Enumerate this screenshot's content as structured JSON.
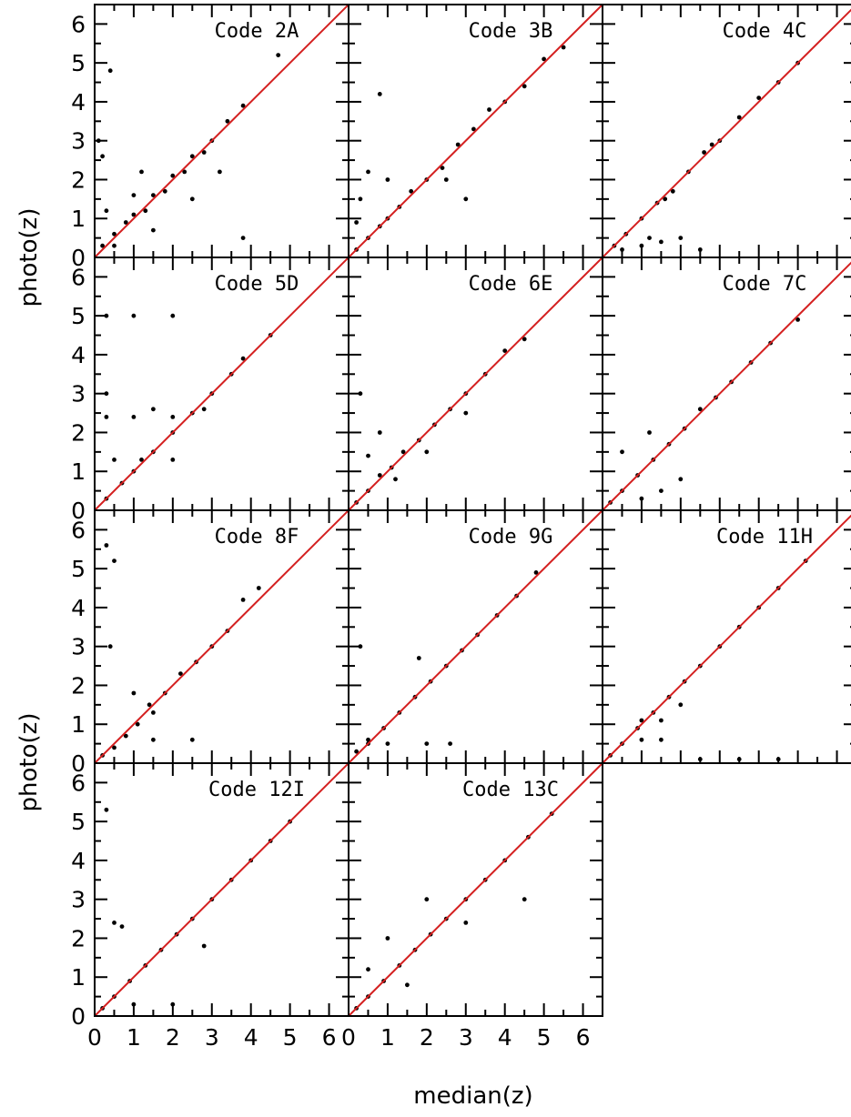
{
  "figure": {
    "xlabel": "median(z)",
    "ylabel": "photo(z)"
  },
  "chart_data": [
    {
      "type": "scatter",
      "title": "Code 2A",
      "xlim": [
        0,
        6.5
      ],
      "ylim": [
        0,
        6.5
      ],
      "xticks": [
        0,
        1,
        2,
        3,
        4,
        5,
        6
      ],
      "yticks": [
        0,
        1,
        2,
        3,
        4,
        5,
        6
      ],
      "reference_line": "y = x",
      "series": [
        {
          "points": [
            [
              0.2,
              0.3
            ],
            [
              0.5,
              0.6
            ],
            [
              0.8,
              0.9
            ],
            [
              1.0,
              1.1
            ],
            [
              1.3,
              1.2
            ],
            [
              1.5,
              1.6
            ],
            [
              1.8,
              1.7
            ],
            [
              2.0,
              2.1
            ],
            [
              2.3,
              2.2
            ],
            [
              2.5,
              2.6
            ],
            [
              2.8,
              2.7
            ],
            [
              3.0,
              3.0
            ],
            [
              3.4,
              3.5
            ],
            [
              3.8,
              3.9
            ],
            [
              0.1,
              3.0
            ],
            [
              0.2,
              2.6
            ],
            [
              0.3,
              1.2
            ],
            [
              0.5,
              0.3
            ],
            [
              1.0,
              1.6
            ],
            [
              1.5,
              0.7
            ],
            [
              2.5,
              1.5
            ],
            [
              3.2,
              2.2
            ],
            [
              3.8,
              0.5
            ],
            [
              4.7,
              5.2
            ],
            [
              0.4,
              4.8
            ],
            [
              1.2,
              2.2
            ]
          ]
        }
      ]
    },
    {
      "type": "scatter",
      "title": "Code 3B",
      "xlim": [
        0,
        6.5
      ],
      "ylim": [
        0,
        6.5
      ],
      "xticks": [
        0,
        1,
        2,
        3,
        4,
        5,
        6
      ],
      "yticks": [
        0,
        1,
        2,
        3,
        4,
        5,
        6
      ],
      "reference_line": "y = x",
      "series": [
        {
          "points": [
            [
              0.2,
              0.2
            ],
            [
              0.5,
              0.5
            ],
            [
              0.8,
              0.8
            ],
            [
              1.0,
              1.0
            ],
            [
              1.3,
              1.3
            ],
            [
              1.6,
              1.7
            ],
            [
              2.0,
              2.0
            ],
            [
              2.4,
              2.3
            ],
            [
              2.8,
              2.9
            ],
            [
              3.2,
              3.3
            ],
            [
              3.6,
              3.8
            ],
            [
              4.0,
              4.0
            ],
            [
              4.5,
              4.4
            ],
            [
              5.0,
              5.1
            ],
            [
              0.3,
              1.5
            ],
            [
              0.5,
              2.2
            ],
            [
              0.2,
              0.9
            ],
            [
              1.0,
              2.0
            ],
            [
              2.5,
              2.0
            ],
            [
              3.0,
              1.5
            ],
            [
              0.8,
              4.2
            ],
            [
              5.5,
              5.4
            ]
          ]
        }
      ]
    },
    {
      "type": "scatter",
      "title": "Code 4C",
      "xlim": [
        0,
        6.5
      ],
      "ylim": [
        0,
        6.5
      ],
      "xticks": [
        0,
        1,
        2,
        3,
        4,
        5,
        6
      ],
      "yticks": [
        0,
        1,
        2,
        3,
        4,
        5,
        6
      ],
      "reference_line": "y = x",
      "series": [
        {
          "points": [
            [
              0.3,
              0.3
            ],
            [
              0.6,
              0.6
            ],
            [
              1.0,
              1.0
            ],
            [
              1.4,
              1.4
            ],
            [
              1.8,
              1.7
            ],
            [
              2.2,
              2.2
            ],
            [
              2.6,
              2.7
            ],
            [
              3.0,
              3.0
            ],
            [
              3.5,
              3.6
            ],
            [
              4.0,
              4.1
            ],
            [
              4.5,
              4.5
            ],
            [
              5.0,
              5.0
            ],
            [
              0.5,
              0.2
            ],
            [
              1.0,
              0.3
            ],
            [
              1.5,
              0.4
            ],
            [
              2.0,
              0.5
            ],
            [
              2.5,
              0.2
            ],
            [
              1.6,
              1.5
            ],
            [
              2.8,
              2.9
            ],
            [
              1.2,
              0.5
            ]
          ]
        }
      ]
    },
    {
      "type": "scatter",
      "title": "Code 5D",
      "xlim": [
        0,
        6.5
      ],
      "ylim": [
        0,
        6.5
      ],
      "xticks": [
        0,
        1,
        2,
        3,
        4,
        5,
        6
      ],
      "yticks": [
        0,
        1,
        2,
        3,
        4,
        5,
        6
      ],
      "reference_line": "y = x",
      "series": [
        {
          "points": [
            [
              0.3,
              0.3
            ],
            [
              0.7,
              0.7
            ],
            [
              1.0,
              1.0
            ],
            [
              1.5,
              1.5
            ],
            [
              2.0,
              2.0
            ],
            [
              2.5,
              2.5
            ],
            [
              3.0,
              3.0
            ],
            [
              3.5,
              3.5
            ],
            [
              3.8,
              3.9
            ],
            [
              4.5,
              4.5
            ],
            [
              0.3,
              5.0
            ],
            [
              1.0,
              5.0
            ],
            [
              2.0,
              5.0
            ],
            [
              0.3,
              2.4
            ],
            [
              1.0,
              2.4
            ],
            [
              2.0,
              2.4
            ],
            [
              0.5,
              1.3
            ],
            [
              1.2,
              1.3
            ],
            [
              2.0,
              1.3
            ],
            [
              0.3,
              3.0
            ],
            [
              1.5,
              2.6
            ],
            [
              2.8,
              2.6
            ]
          ]
        }
      ]
    },
    {
      "type": "scatter",
      "title": "Code 6E",
      "xlim": [
        0,
        6.5
      ],
      "ylim": [
        0,
        6.5
      ],
      "xticks": [
        0,
        1,
        2,
        3,
        4,
        5,
        6
      ],
      "yticks": [
        0,
        1,
        2,
        3,
        4,
        5,
        6
      ],
      "reference_line": "y = x",
      "series": [
        {
          "points": [
            [
              0.2,
              0.2
            ],
            [
              0.5,
              0.5
            ],
            [
              0.8,
              0.9
            ],
            [
              1.1,
              1.1
            ],
            [
              1.4,
              1.5
            ],
            [
              1.8,
              1.8
            ],
            [
              2.2,
              2.2
            ],
            [
              2.6,
              2.6
            ],
            [
              3.0,
              3.0
            ],
            [
              3.5,
              3.5
            ],
            [
              4.0,
              4.1
            ],
            [
              4.5,
              4.4
            ],
            [
              0.5,
              1.4
            ],
            [
              0.8,
              2.0
            ],
            [
              1.2,
              0.8
            ],
            [
              2.0,
              1.5
            ],
            [
              0.3,
              3.0
            ],
            [
              3.0,
              2.5
            ]
          ]
        }
      ]
    },
    {
      "type": "scatter",
      "title": "Code 7C",
      "xlim": [
        0,
        6.5
      ],
      "ylim": [
        0,
        6.5
      ],
      "xticks": [
        0,
        1,
        2,
        3,
        4,
        5,
        6
      ],
      "yticks": [
        0,
        1,
        2,
        3,
        4,
        5,
        6
      ],
      "reference_line": "y = x",
      "series": [
        {
          "points": [
            [
              0.2,
              0.2
            ],
            [
              0.5,
              0.5
            ],
            [
              0.9,
              0.9
            ],
            [
              1.3,
              1.3
            ],
            [
              1.7,
              1.7
            ],
            [
              2.1,
              2.1
            ],
            [
              2.5,
              2.6
            ],
            [
              2.9,
              2.9
            ],
            [
              3.3,
              3.3
            ],
            [
              3.8,
              3.8
            ],
            [
              4.3,
              4.3
            ],
            [
              5.0,
              4.9
            ],
            [
              1.0,
              0.3
            ],
            [
              1.5,
              0.5
            ],
            [
              2.0,
              0.8
            ],
            [
              0.5,
              1.5
            ],
            [
              1.2,
              2.0
            ]
          ]
        }
      ]
    },
    {
      "type": "scatter",
      "title": "Code 8F",
      "xlim": [
        0,
        6.5
      ],
      "ylim": [
        0,
        6.5
      ],
      "xticks": [
        0,
        1,
        2,
        3,
        4,
        5,
        6
      ],
      "yticks": [
        0,
        1,
        2,
        3,
        4,
        5,
        6
      ],
      "reference_line": "y = x",
      "series": [
        {
          "points": [
            [
              0.2,
              0.2
            ],
            [
              0.5,
              0.4
            ],
            [
              0.8,
              0.7
            ],
            [
              1.1,
              1.0
            ],
            [
              1.5,
              1.3
            ],
            [
              1.8,
              1.8
            ],
            [
              2.2,
              2.3
            ],
            [
              2.6,
              2.6
            ],
            [
              3.0,
              3.0
            ],
            [
              3.4,
              3.4
            ],
            [
              3.8,
              4.2
            ],
            [
              4.2,
              4.5
            ],
            [
              0.3,
              5.6
            ],
            [
              0.5,
              5.2
            ],
            [
              0.4,
              3.0
            ],
            [
              1.5,
              0.6
            ],
            [
              2.5,
              0.6
            ],
            [
              1.0,
              1.8
            ],
            [
              1.4,
              1.5
            ]
          ]
        }
      ]
    },
    {
      "type": "scatter",
      "title": "Code 9G",
      "xlim": [
        0,
        6.5
      ],
      "ylim": [
        0,
        6.5
      ],
      "xticks": [
        0,
        1,
        2,
        3,
        4,
        5,
        6
      ],
      "yticks": [
        0,
        1,
        2,
        3,
        4,
        5,
        6
      ],
      "reference_line": "y = x",
      "series": [
        {
          "points": [
            [
              0.2,
              0.3
            ],
            [
              0.5,
              0.5
            ],
            [
              0.9,
              0.9
            ],
            [
              1.3,
              1.3
            ],
            [
              1.7,
              1.7
            ],
            [
              2.1,
              2.1
            ],
            [
              2.5,
              2.5
            ],
            [
              2.9,
              2.9
            ],
            [
              3.3,
              3.3
            ],
            [
              3.8,
              3.8
            ],
            [
              4.3,
              4.3
            ],
            [
              4.8,
              4.9
            ],
            [
              0.5,
              0.6
            ],
            [
              1.0,
              0.5
            ],
            [
              2.0,
              0.5
            ],
            [
              2.6,
              0.5
            ],
            [
              0.3,
              3.0
            ],
            [
              1.8,
              2.7
            ]
          ]
        }
      ]
    },
    {
      "type": "scatter",
      "title": "Code 11H",
      "xlim": [
        0,
        6.5
      ],
      "ylim": [
        0,
        6.5
      ],
      "xticks": [
        0,
        1,
        2,
        3,
        4,
        5,
        6
      ],
      "yticks": [
        0,
        1,
        2,
        3,
        4,
        5,
        6
      ],
      "reference_line": "y = x",
      "series": [
        {
          "points": [
            [
              0.2,
              0.2
            ],
            [
              0.5,
              0.5
            ],
            [
              0.9,
              0.9
            ],
            [
              1.3,
              1.3
            ],
            [
              1.7,
              1.7
            ],
            [
              2.1,
              2.1
            ],
            [
              2.5,
              2.5
            ],
            [
              3.0,
              3.0
            ],
            [
              3.5,
              3.5
            ],
            [
              4.0,
              4.0
            ],
            [
              4.5,
              4.5
            ],
            [
              5.2,
              5.2
            ],
            [
              1.0,
              1.1
            ],
            [
              1.5,
              1.1
            ],
            [
              2.0,
              1.5
            ],
            [
              1.0,
              0.6
            ],
            [
              2.5,
              0.1
            ],
            [
              3.5,
              0.1
            ],
            [
              4.5,
              0.1
            ],
            [
              1.5,
              0.6
            ]
          ]
        }
      ]
    },
    {
      "type": "scatter",
      "title": "Code 12I",
      "xlim": [
        0,
        6.5
      ],
      "ylim": [
        0,
        6.5
      ],
      "xticks": [
        0,
        1,
        2,
        3,
        4,
        5,
        6
      ],
      "yticks": [
        0,
        1,
        2,
        3,
        4,
        5,
        6
      ],
      "reference_line": "y = x",
      "series": [
        {
          "points": [
            [
              0.2,
              0.2
            ],
            [
              0.5,
              0.5
            ],
            [
              0.9,
              0.9
            ],
            [
              1.3,
              1.3
            ],
            [
              1.7,
              1.7
            ],
            [
              2.1,
              2.1
            ],
            [
              2.5,
              2.5
            ],
            [
              3.0,
              3.0
            ],
            [
              3.5,
              3.5
            ],
            [
              4.0,
              4.0
            ],
            [
              4.5,
              4.5
            ],
            [
              5.0,
              5.0
            ],
            [
              0.5,
              2.4
            ],
            [
              0.7,
              2.3
            ],
            [
              1.0,
              0.3
            ],
            [
              2.0,
              0.3
            ],
            [
              0.3,
              5.3
            ],
            [
              2.8,
              1.8
            ]
          ]
        }
      ]
    },
    {
      "type": "scatter",
      "title": "Code 13C",
      "xlim": [
        0,
        6.5
      ],
      "ylim": [
        0,
        6.5
      ],
      "xticks": [
        0,
        1,
        2,
        3,
        4,
        5,
        6
      ],
      "yticks": [
        0,
        1,
        2,
        3,
        4,
        5,
        6
      ],
      "reference_line": "y = x",
      "series": [
        {
          "points": [
            [
              0.2,
              0.2
            ],
            [
              0.5,
              0.5
            ],
            [
              0.9,
              0.9
            ],
            [
              1.3,
              1.3
            ],
            [
              1.7,
              1.7
            ],
            [
              2.1,
              2.1
            ],
            [
              2.5,
              2.5
            ],
            [
              3.0,
              3.0
            ],
            [
              3.5,
              3.5
            ],
            [
              4.0,
              4.0
            ],
            [
              4.6,
              4.6
            ],
            [
              5.2,
              5.2
            ],
            [
              0.5,
              1.2
            ],
            [
              1.0,
              2.0
            ],
            [
              1.5,
              0.8
            ],
            [
              2.0,
              3.0
            ],
            [
              3.0,
              2.4
            ],
            [
              4.5,
              3.0
            ]
          ]
        }
      ]
    }
  ]
}
